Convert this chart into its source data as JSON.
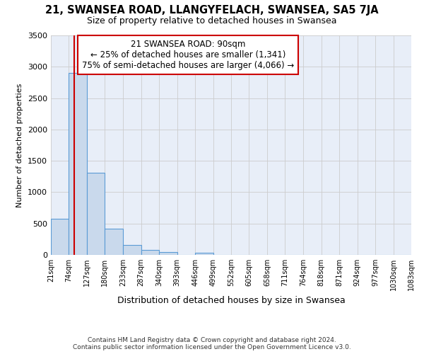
{
  "title": "21, SWANSEA ROAD, LLANGYFELACH, SWANSEA, SA5 7JA",
  "subtitle": "Size of property relative to detached houses in Swansea",
  "xlabel": "Distribution of detached houses by size in Swansea",
  "ylabel": "Number of detached properties",
  "bin_edges": [
    21,
    74,
    127,
    180,
    233,
    287,
    340,
    393,
    446,
    499,
    552,
    605,
    658,
    711,
    764,
    818,
    871,
    924,
    977,
    1030,
    1083
  ],
  "bar_heights": [
    575,
    2900,
    1310,
    420,
    155,
    75,
    50,
    0,
    35,
    0,
    0,
    0,
    0,
    0,
    0,
    0,
    0,
    0,
    0,
    0
  ],
  "bar_facecolor": "#c9d9ec",
  "bar_edgecolor": "#5b9bd5",
  "property_size": 90,
  "annotation_line1": "21 SWANSEA ROAD: 90sqm",
  "annotation_line2": "← 25% of detached houses are smaller (1,341)",
  "annotation_line3": "75% of semi-detached houses are larger (4,066) →",
  "vline_color": "#cc0000",
  "annotation_box_edgecolor": "#cc0000",
  "annotation_box_facecolor": "#ffffff",
  "ylim": [
    0,
    3500
  ],
  "yticks": [
    0,
    500,
    1000,
    1500,
    2000,
    2500,
    3000,
    3500
  ],
  "footer_line1": "Contains HM Land Registry data © Crown copyright and database right 2024.",
  "footer_line2": "Contains public sector information licensed under the Open Government Licence v3.0.",
  "bg_color": "#ffffff",
  "grid_color": "#cccccc",
  "plot_bg_color": "#e8eef8"
}
